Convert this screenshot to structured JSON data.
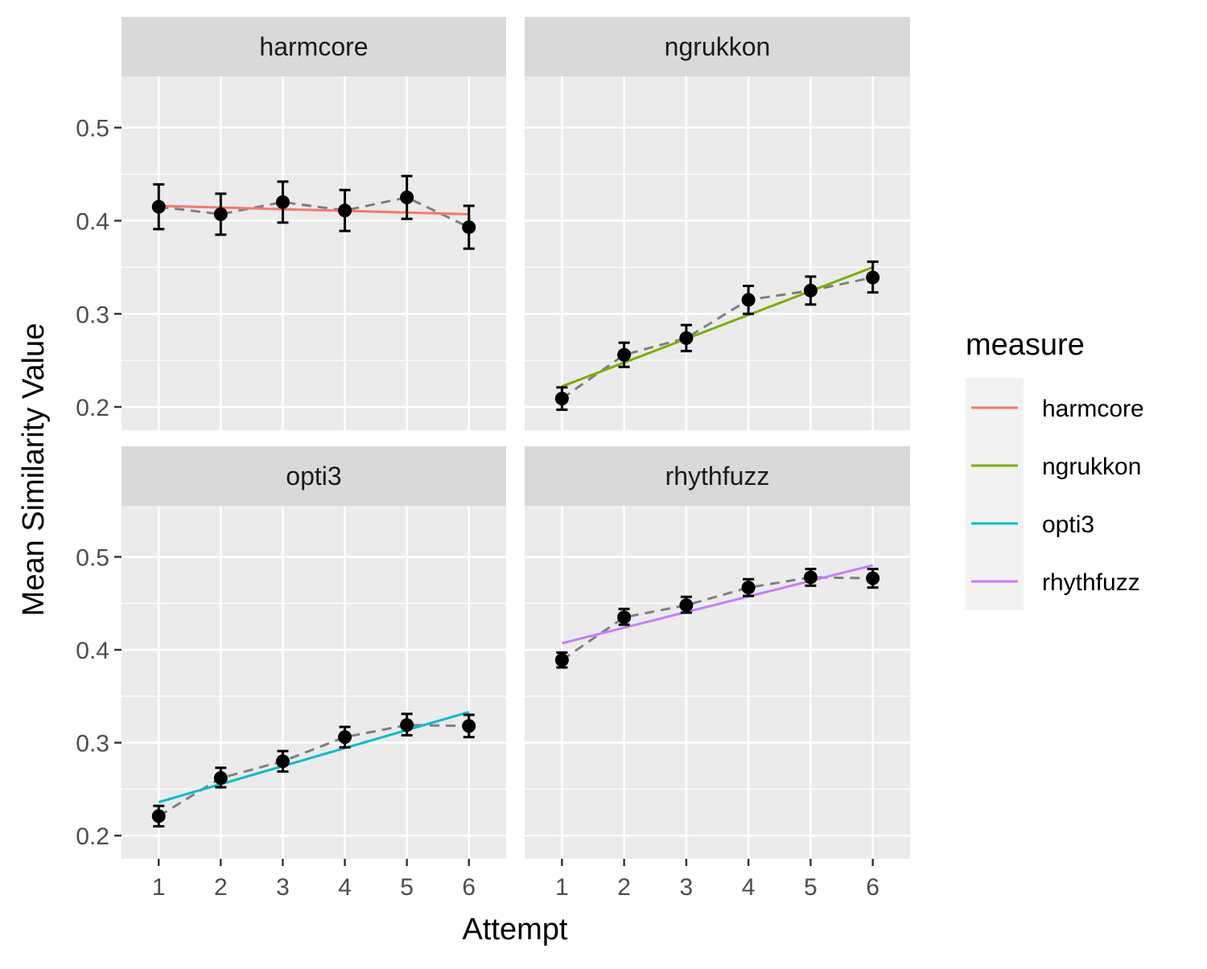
{
  "chart_data": {
    "type": "line",
    "xlabel": "Attempt",
    "ylabel": "Mean Similarity Value",
    "x": [
      1,
      2,
      3,
      4,
      5,
      6
    ],
    "x_ticks": [
      "1",
      "2",
      "3",
      "4",
      "5",
      "6"
    ],
    "ylim": [
      0.175,
      0.555
    ],
    "y_ticks": [
      0.2,
      0.3,
      0.4,
      0.5
    ],
    "y_tick_labels": [
      "0.2",
      "0.3",
      "0.4",
      "0.5"
    ],
    "grid": true,
    "legend": {
      "title": "measure",
      "position": "right",
      "entries": [
        "harmcore",
        "ngrukkon",
        "opti3",
        "rhythfuzz"
      ]
    },
    "colors": {
      "harmcore": "#F8766D",
      "ngrukkon": "#7CAE00",
      "opti3": "#00BFC4",
      "rhythfuzz": "#C77CFF",
      "points": "#000000",
      "connector": "#7f7f7f",
      "panel": "#EBEBEB",
      "strip": "#D9D9D9"
    },
    "panels": [
      {
        "name": "harmcore",
        "mean": [
          0.415,
          0.407,
          0.42,
          0.411,
          0.425,
          0.393
        ],
        "lower": [
          0.391,
          0.385,
          0.398,
          0.389,
          0.402,
          0.37
        ],
        "upper": [
          0.439,
          0.429,
          0.442,
          0.433,
          0.448,
          0.416
        ],
        "fit": [
          0.416,
          0.407
        ]
      },
      {
        "name": "ngrukkon",
        "mean": [
          0.209,
          0.256,
          0.274,
          0.315,
          0.325,
          0.339
        ],
        "lower": [
          0.197,
          0.243,
          0.26,
          0.3,
          0.31,
          0.323
        ],
        "upper": [
          0.221,
          0.269,
          0.288,
          0.33,
          0.34,
          0.356
        ],
        "fit": [
          0.222,
          0.35
        ]
      },
      {
        "name": "opti3",
        "mean": [
          0.221,
          0.262,
          0.28,
          0.306,
          0.319,
          0.318
        ],
        "lower": [
          0.21,
          0.252,
          0.269,
          0.295,
          0.308,
          0.306
        ],
        "upper": [
          0.232,
          0.273,
          0.291,
          0.317,
          0.331,
          0.33
        ],
        "fit": [
          0.236,
          0.333
        ]
      },
      {
        "name": "rhythfuzz",
        "mean": [
          0.389,
          0.435,
          0.448,
          0.467,
          0.478,
          0.477
        ],
        "lower": [
          0.381,
          0.427,
          0.44,
          0.458,
          0.469,
          0.467
        ],
        "upper": [
          0.397,
          0.444,
          0.457,
          0.476,
          0.487,
          0.487
        ],
        "fit": [
          0.407,
          0.491
        ]
      }
    ]
  }
}
